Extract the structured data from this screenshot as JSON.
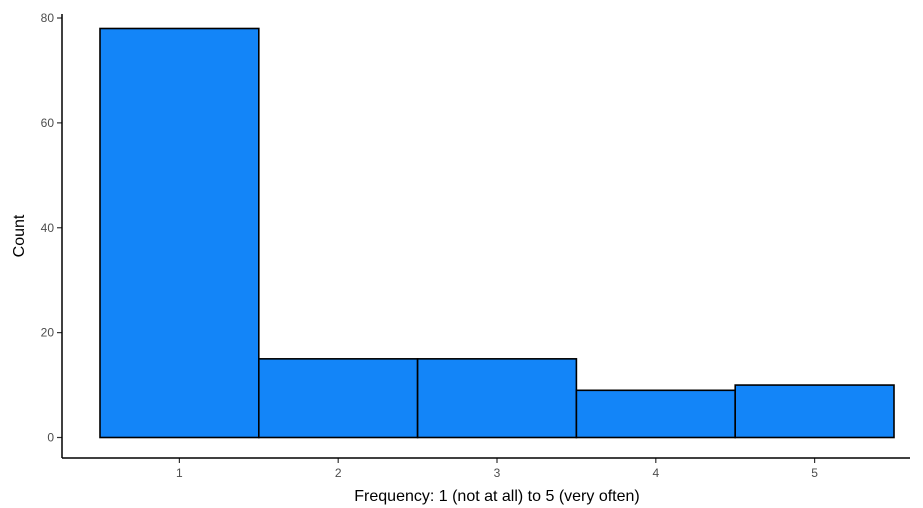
{
  "chart_data": {
    "type": "bar",
    "categories": [
      "1",
      "2",
      "3",
      "4",
      "5"
    ],
    "values": [
      78,
      15,
      15,
      9,
      10
    ],
    "title": "",
    "xlabel": "Frequency: 1 (not at all) to 5 (very often)",
    "ylabel": "Count",
    "ylim": [
      0,
      80
    ],
    "yticks": [
      "0",
      "20",
      "40",
      "60",
      "80"
    ],
    "grid": false,
    "legend": "none",
    "bar_color": "#1385F8",
    "bar_edge_color": "#000000"
  }
}
